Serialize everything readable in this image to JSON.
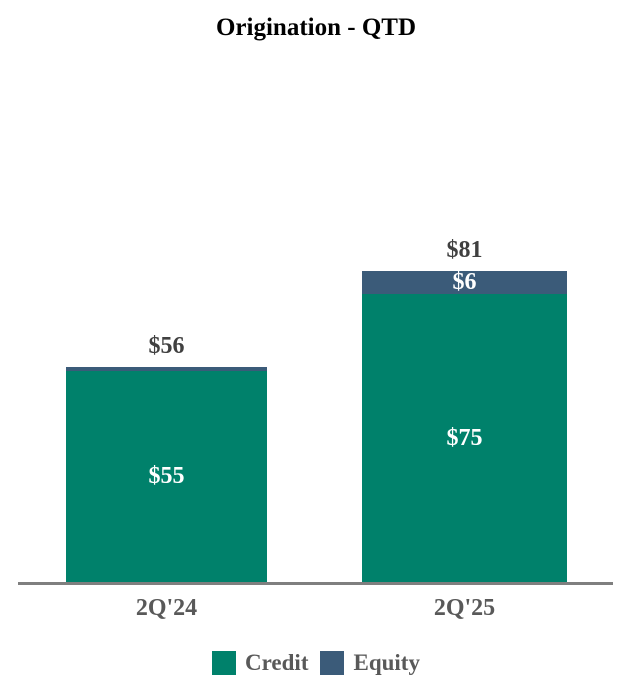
{
  "chart_data": {
    "type": "bar",
    "stacked": true,
    "title": "Origination - QTD",
    "categories": [
      "2Q'24",
      "2Q'25"
    ],
    "series": [
      {
        "name": "Credit",
        "color": "#00816B",
        "values": [
          55,
          75
        ],
        "labels": [
          "$55",
          "$75"
        ]
      },
      {
        "name": "Equity",
        "color": "#3B5B79",
        "values": [
          1,
          6
        ],
        "labels": [
          "",
          "$6"
        ]
      }
    ],
    "totals": [
      56,
      81
    ],
    "total_labels": [
      "$56",
      "$81"
    ],
    "xlabel": "",
    "ylabel": "",
    "ylim": [
      0,
      90
    ],
    "y_axis_visible": false,
    "grid": false,
    "legend_position": "bottom",
    "axis_color": "#7F7F7F"
  }
}
